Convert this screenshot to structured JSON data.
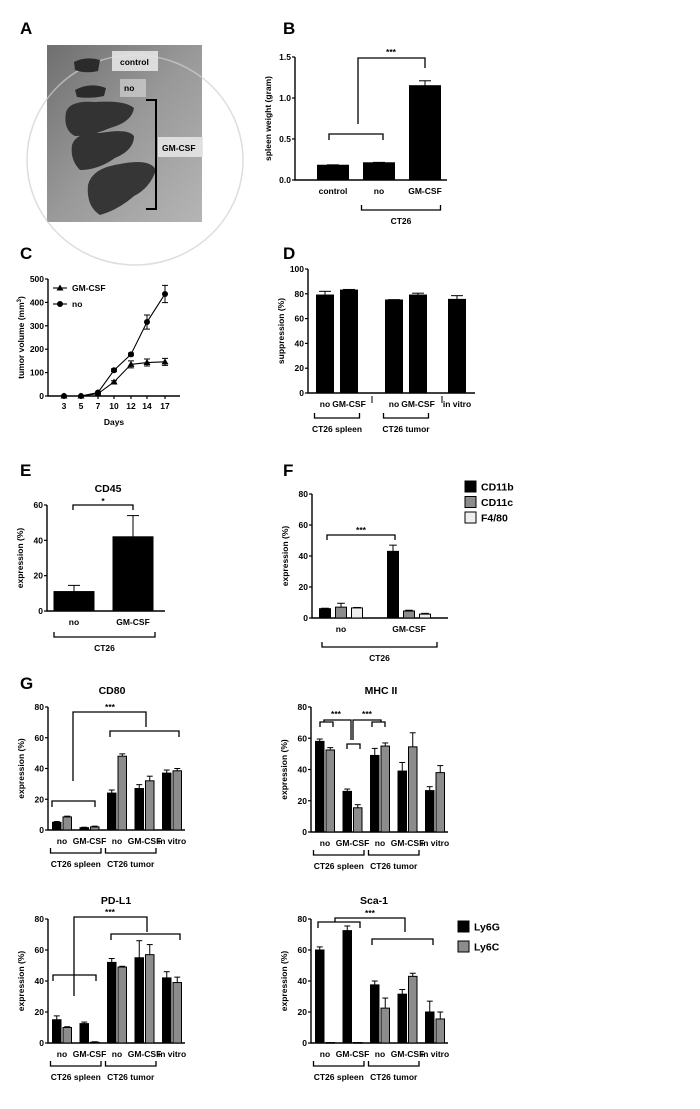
{
  "colors": {
    "black": "#000000",
    "gray": "#8c8c8c",
    "white": "#efefef"
  },
  "panels": {
    "A": {
      "letter": "A",
      "photo_labels": {
        "control": "control",
        "no": "no",
        "gmcsf": "GM-CSF"
      }
    }
  },
  "chart_data": [
    {
      "id": "B",
      "letter": "B",
      "type": "bar",
      "title": "",
      "ylabel": "spleen weight (gram)",
      "ylim": [
        0,
        1.5
      ],
      "yticks": [
        "0.0",
        "0.5",
        "1.0",
        "1.5"
      ],
      "categories": [
        "control",
        "no",
        "GM-CSF"
      ],
      "series": [
        {
          "color": "black",
          "values": [
            0.18,
            0.21,
            1.15
          ],
          "errors": [
            0.005,
            0.005,
            0.06
          ]
        }
      ],
      "groups": [
        {
          "label": "CT26",
          "span": [
            1,
            2
          ]
        }
      ],
      "significance": [
        "***"
      ]
    },
    {
      "id": "C",
      "letter": "C",
      "type": "line",
      "ylabel": "tumor volume (mm³)",
      "ylabel_main": "tumor volume (mm",
      "ylabel_sup": "3",
      "ylabel_close": ")",
      "xlabel": "Days",
      "ylim": [
        0,
        500
      ],
      "yticks": [
        "0",
        "100",
        "200",
        "300",
        "400",
        "500"
      ],
      "x": [
        3,
        5,
        7,
        10,
        12,
        14,
        17
      ],
      "legend_position": "top-left",
      "series": [
        {
          "name": "GM-CSF",
          "marker": "triangle",
          "values": [
            0,
            0,
            10,
            60,
            135,
            143,
            146
          ],
          "errors": [
            0,
            0,
            2,
            5,
            15,
            15,
            15
          ]
        },
        {
          "name": "no",
          "marker": "circle",
          "values": [
            0,
            0,
            15,
            110,
            178,
            316,
            436
          ],
          "errors": [
            0,
            0,
            2,
            6,
            6,
            30,
            37
          ]
        }
      ]
    },
    {
      "id": "D",
      "letter": "D",
      "type": "bar",
      "ylabel": "suppression (%)",
      "ylim": [
        0,
        100
      ],
      "yticks": [
        "0",
        "20",
        "40",
        "60",
        "80",
        "100"
      ],
      "categories": [
        "no",
        "GM-CSF",
        "no",
        "GM-CSF",
        "in vitro"
      ],
      "series": [
        {
          "color": "black",
          "values": [
            79,
            83,
            75,
            79,
            75.5
          ],
          "errors": [
            3,
            0.5,
            0.3,
            1.5,
            3
          ]
        }
      ],
      "groups": [
        {
          "label": "CT26 spleen",
          "span": [
            0,
            1
          ]
        },
        {
          "label": "CT26 tumor",
          "span": [
            2,
            3
          ]
        }
      ],
      "significance": []
    },
    {
      "id": "E",
      "letter": "E",
      "type": "bar",
      "title": "CD45",
      "ylabel": "expression (%)",
      "ylim": [
        0,
        60
      ],
      "yticks": [
        "0",
        "20",
        "40",
        "60"
      ],
      "categories": [
        "no",
        "GM-CSF"
      ],
      "series": [
        {
          "color": "black",
          "values": [
            11,
            42
          ],
          "errors": [
            3.5,
            12
          ]
        }
      ],
      "groups": [
        {
          "label": "CT26",
          "span": [
            0,
            1
          ]
        }
      ],
      "significance": [
        "*"
      ]
    },
    {
      "id": "F",
      "letter": "F",
      "type": "bar",
      "ylabel": "expression (%)",
      "ylim": [
        0,
        80
      ],
      "yticks": [
        "0",
        "20",
        "40",
        "60",
        "80"
      ],
      "categories": [
        "no",
        "GM-CSF"
      ],
      "legend_position": "right",
      "series": [
        {
          "name": "CD11b",
          "color": "black",
          "values": [
            6,
            43
          ],
          "errors": [
            0.3,
            4
          ]
        },
        {
          "name": "CD11c",
          "color": "gray",
          "values": [
            7,
            4.5
          ],
          "errors": [
            2.5,
            0.5
          ]
        },
        {
          "name": "F4/80",
          "color": "white",
          "values": [
            6.5,
            2.5
          ],
          "errors": [
            0.3,
            0.5
          ]
        }
      ],
      "groups": [
        {
          "label": "CT26",
          "span": [
            0,
            1
          ]
        }
      ],
      "significance": [
        "***"
      ]
    },
    {
      "id": "G1",
      "letter": "G",
      "type": "bar",
      "title": "CD80",
      "ylabel": "expression (%)",
      "ylim": [
        0,
        80
      ],
      "yticks": [
        "0",
        "20",
        "40",
        "60",
        "80"
      ],
      "categories": [
        "no",
        "GM-CSF",
        "no",
        "GM-CSF",
        "in vitro"
      ],
      "series": [
        {
          "name": "Ly6G",
          "color": "black",
          "values": [
            5,
            1.5,
            24,
            27,
            37
          ],
          "errors": [
            0.5,
            0.3,
            2,
            2.5,
            2
          ]
        },
        {
          "name": "Ly6C",
          "color": "gray",
          "values": [
            8.5,
            2,
            48,
            32,
            38.5
          ],
          "errors": [
            0.5,
            0.5,
            1.5,
            3,
            1.5
          ]
        }
      ],
      "groups": [
        {
          "label": "CT26 spleen",
          "span": [
            0,
            1
          ]
        },
        {
          "label": "CT26 tumor",
          "span": [
            2,
            3
          ]
        }
      ],
      "significance": [
        "***"
      ]
    },
    {
      "id": "G2",
      "letter": "",
      "type": "bar",
      "title": "MHC II",
      "ylabel": "expression (%)",
      "ylim": [
        0,
        80
      ],
      "yticks": [
        "0",
        "20",
        "40",
        "60",
        "80"
      ],
      "categories": [
        "no",
        "GM-CSF",
        "no",
        "GM-CSF",
        "in vitro"
      ],
      "series": [
        {
          "name": "Ly6G",
          "color": "black",
          "values": [
            58,
            26,
            49,
            39,
            26.5
          ],
          "errors": [
            1.5,
            1.5,
            4.5,
            5.5,
            2.5
          ]
        },
        {
          "name": "Ly6C",
          "color": "gray",
          "values": [
            52.5,
            15.5,
            55,
            54.5,
            38
          ],
          "errors": [
            1.5,
            2,
            2,
            9,
            4.5
          ]
        }
      ],
      "groups": [
        {
          "label": "CT26 spleen",
          "span": [
            0,
            1
          ]
        },
        {
          "label": "CT26 tumor",
          "span": [
            2,
            3
          ]
        }
      ],
      "significance": [
        "***",
        "***"
      ]
    },
    {
      "id": "G3",
      "letter": "",
      "type": "bar",
      "title": "PD-L1",
      "ylabel": "expression (%)",
      "ylim": [
        0,
        80
      ],
      "yticks": [
        "0",
        "20",
        "40",
        "60",
        "80"
      ],
      "categories": [
        "no",
        "GM-CSF",
        "no",
        "GM-CSF",
        "in vitro"
      ],
      "series": [
        {
          "name": "Ly6G",
          "color": "black",
          "values": [
            15,
            12.5,
            52,
            55,
            42
          ],
          "errors": [
            2.5,
            1,
            2.5,
            11,
            4
          ]
        },
        {
          "name": "Ly6C",
          "color": "gray",
          "values": [
            10,
            0.5,
            49,
            57,
            39
          ],
          "errors": [
            0.5,
            0.3,
            0.5,
            6.5,
            3.5
          ]
        }
      ],
      "groups": [
        {
          "label": "CT26 spleen",
          "span": [
            0,
            1
          ]
        },
        {
          "label": "CT26 tumor",
          "span": [
            2,
            3
          ]
        }
      ],
      "significance": [
        "***"
      ]
    },
    {
      "id": "G4",
      "letter": "",
      "type": "bar",
      "title": "Sca-1",
      "ylabel": "expression (%)",
      "ylim": [
        0,
        80
      ],
      "yticks": [
        "0",
        "20",
        "40",
        "60",
        "80"
      ],
      "categories": [
        "no",
        "GM-CSF",
        "no",
        "GM-CSF",
        "in vitro"
      ],
      "legend_position": "right",
      "series": [
        {
          "name": "Ly6G",
          "color": "black",
          "values": [
            60,
            72.5,
            37.5,
            31.5,
            20
          ],
          "errors": [
            2,
            3,
            2.5,
            3,
            7
          ]
        },
        {
          "name": "Ly6C",
          "color": "gray",
          "values": [
            0.3,
            0.3,
            22.5,
            43,
            15.5
          ],
          "errors": [
            0,
            0,
            6.5,
            2,
            4.5
          ]
        }
      ],
      "groups": [
        {
          "label": "CT26 spleen",
          "span": [
            0,
            1
          ]
        },
        {
          "label": "CT26 tumor",
          "span": [
            2,
            3
          ]
        }
      ],
      "significance": [
        "***"
      ]
    }
  ]
}
